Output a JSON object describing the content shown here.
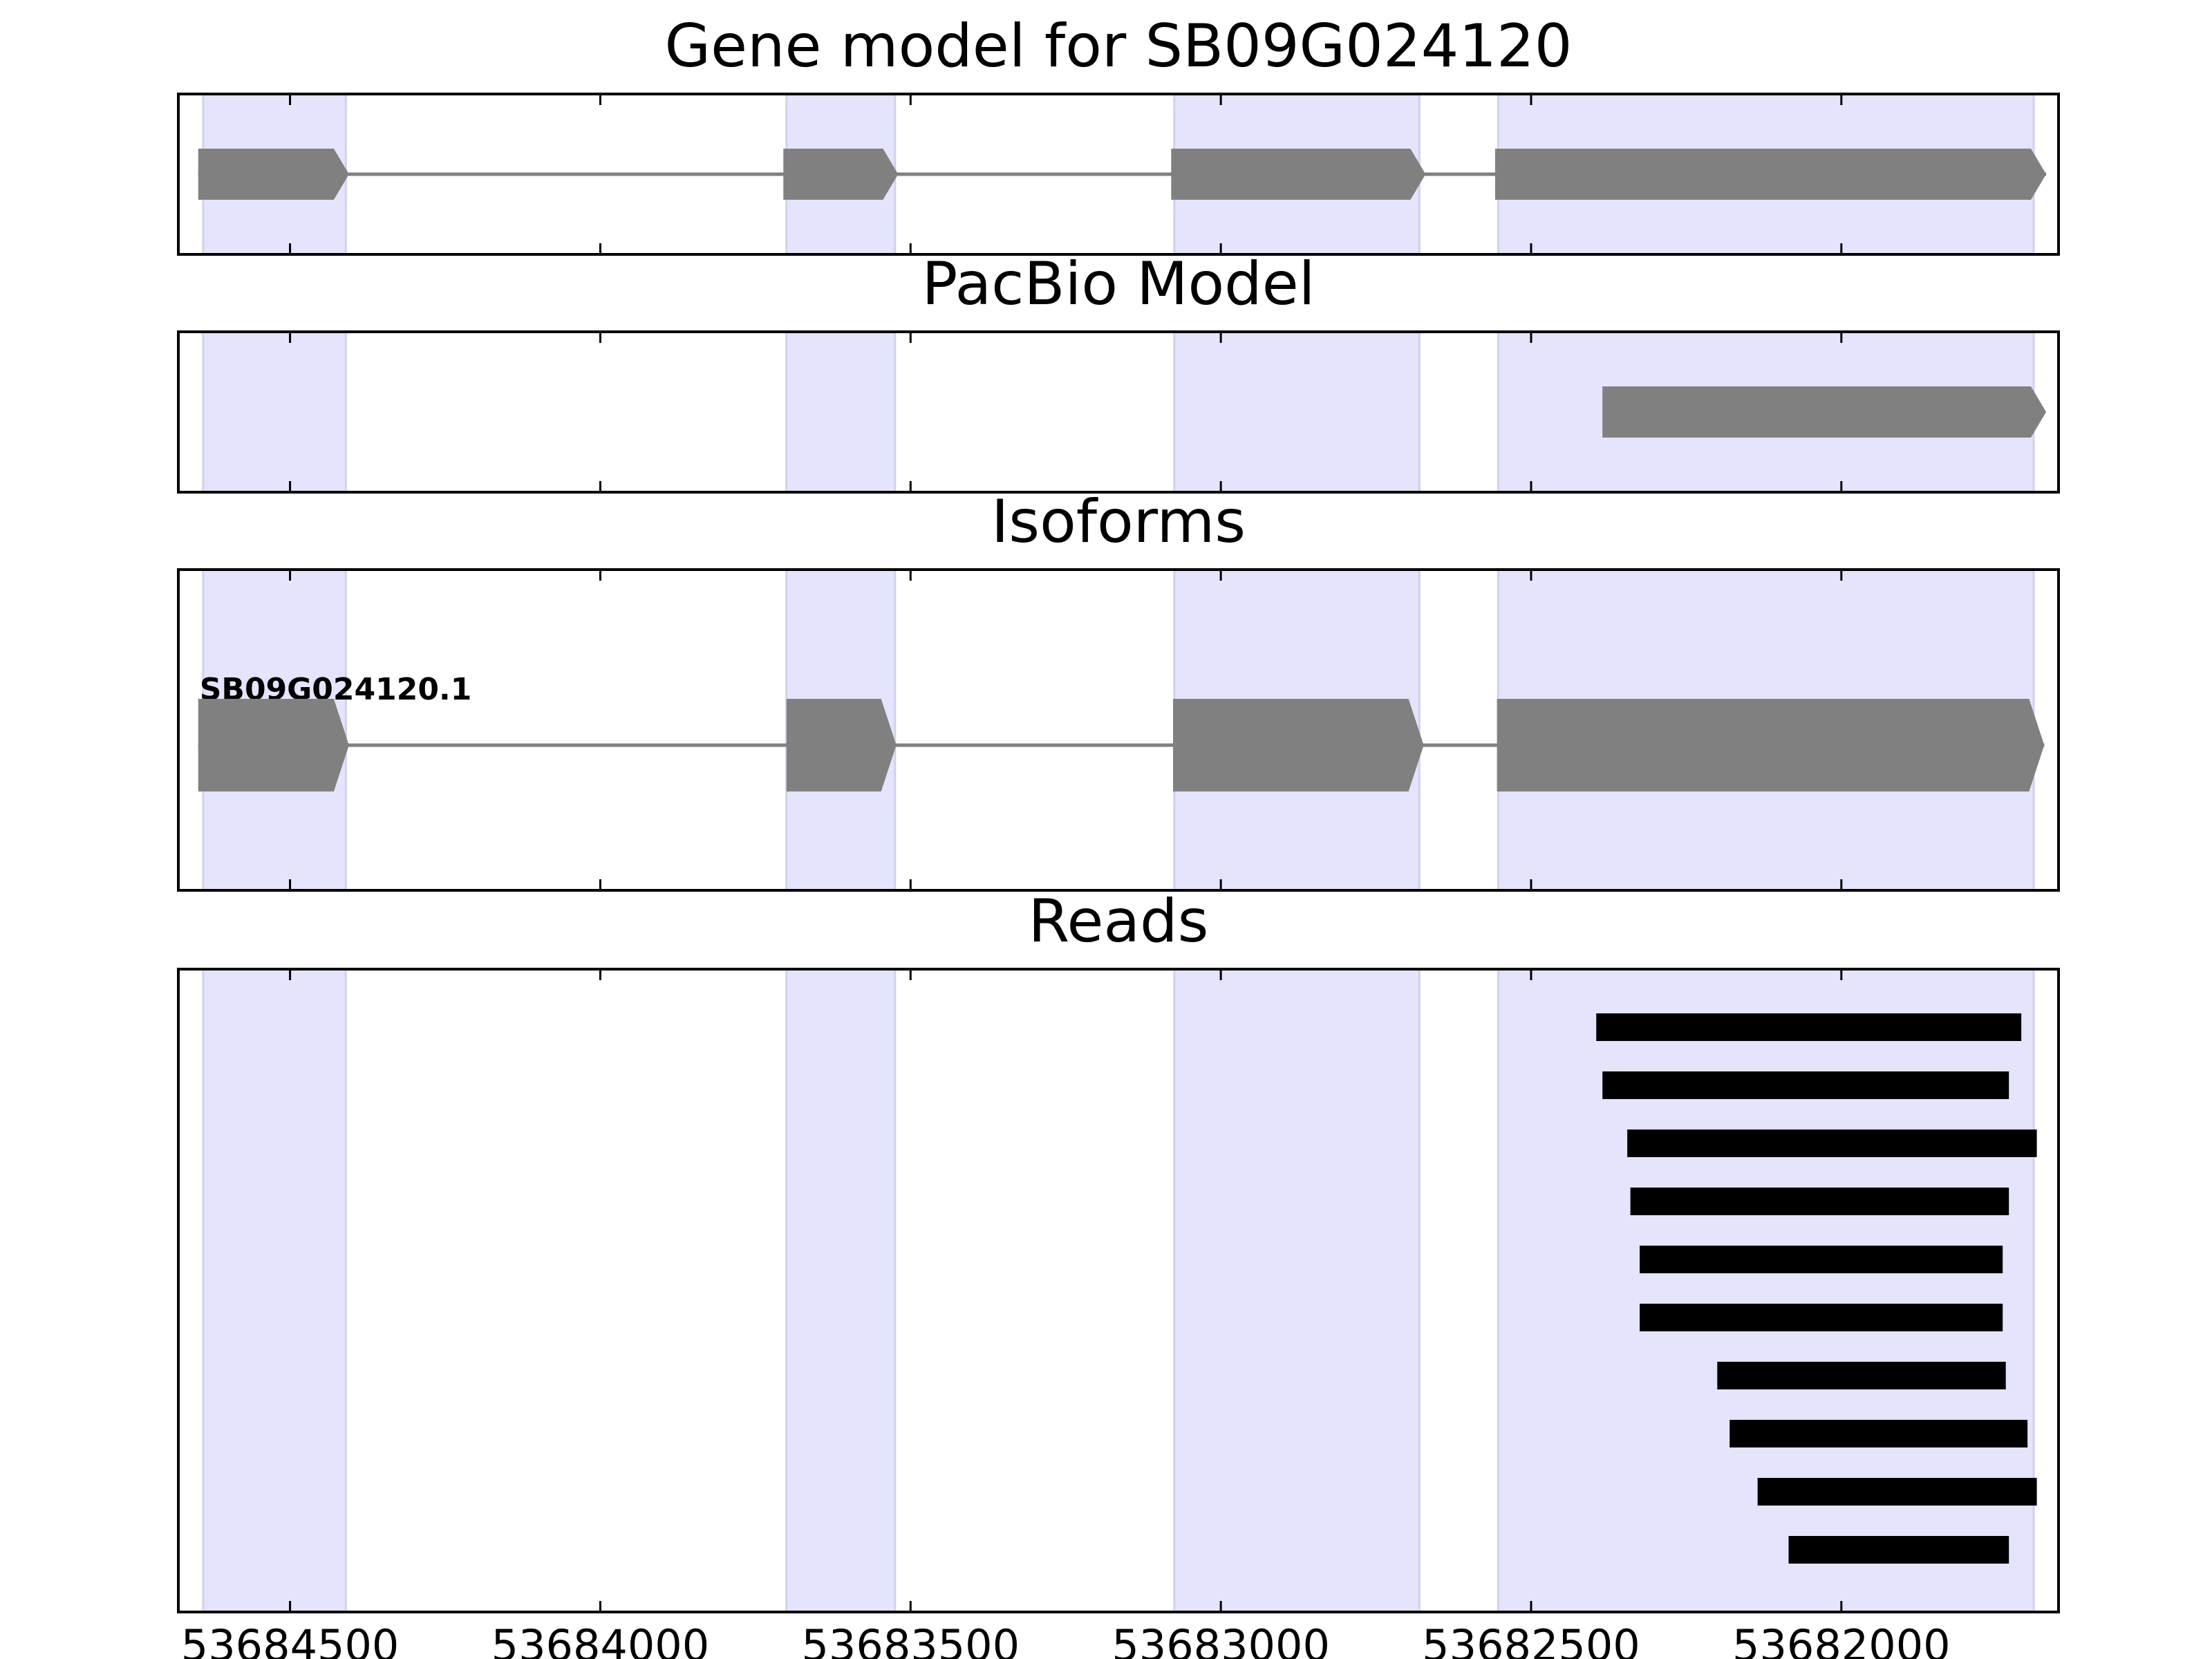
{
  "chart_data": {
    "type": "gene-model",
    "xlim": [
      53684680,
      53681650
    ],
    "x_inverted": true,
    "x_ticks": [
      53684500,
      53684000,
      53683500,
      53683000,
      53682500,
      53682000
    ],
    "x_tick_labels": [
      "53684500",
      "53684000",
      "53683500",
      "53683000",
      "53682500",
      "53682000"
    ],
    "highlight_color": "#e4e4fc",
    "feature_color": "#808080",
    "read_color": "#000000",
    "exon_regions": [
      [
        53684640,
        53684410
      ],
      [
        53683700,
        53683525
      ],
      [
        53683075,
        53682680
      ],
      [
        53682553,
        53681690
      ]
    ],
    "panels": [
      {
        "key": "gene_model",
        "title": "Gene model for SB09G024120",
        "strand": "-",
        "exons": [
          [
            53684648,
            53684405
          ],
          [
            53683705,
            53683520
          ],
          [
            53683080,
            53682670
          ],
          [
            53682558,
            53681670
          ]
        ]
      },
      {
        "key": "pacbio",
        "title": "PacBio Model",
        "strand": "-",
        "exons": [
          [
            53682385,
            53681670
          ]
        ]
      },
      {
        "key": "isoforms",
        "title": "Isoforms",
        "isoforms": [
          {
            "name": "SB09G024120.1",
            "strand": "-",
            "exons": [
              [
                53684648,
                53684405
              ],
              [
                53683700,
                53683523
              ],
              [
                53683077,
                53682673
              ],
              [
                53682555,
                53681673
              ]
            ]
          }
        ]
      },
      {
        "key": "reads",
        "title": "Reads",
        "reads": [
          [
            53682395,
            53681710
          ],
          [
            53682385,
            53681730
          ],
          [
            53682345,
            53681685
          ],
          [
            53682340,
            53681730
          ],
          [
            53682325,
            53681740
          ],
          [
            53682325,
            53681740
          ],
          [
            53682200,
            53681735
          ],
          [
            53682180,
            53681700
          ],
          [
            53682135,
            53681685
          ],
          [
            53682085,
            53681730
          ]
        ]
      }
    ]
  }
}
